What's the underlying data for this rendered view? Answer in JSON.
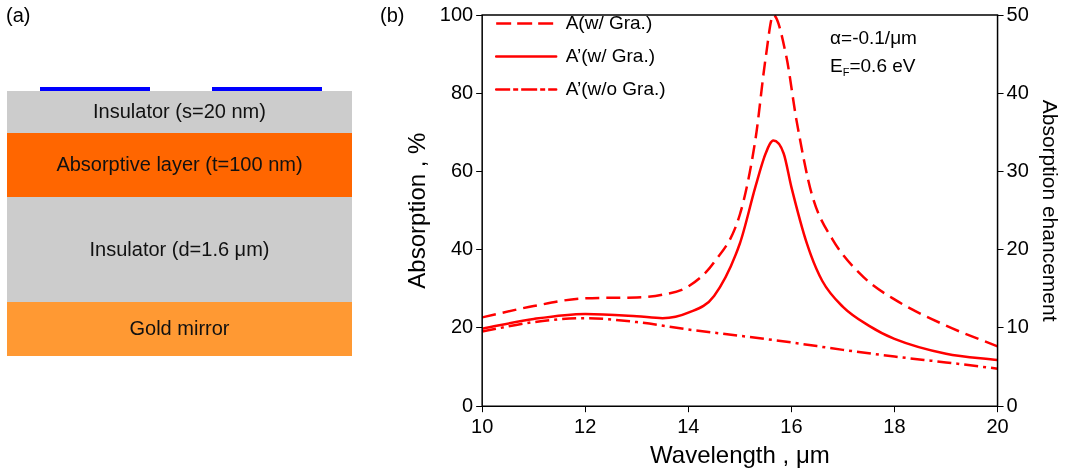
{
  "chart_data": [
    {
      "type": "other",
      "title": "(a)",
      "annotations": [
        "Insulator (s=20 nm)",
        "Absorptive layer (t=100 nm)",
        "Insulator (d=1.6 μm)",
        "Gold mirror"
      ]
    },
    {
      "type": "line",
      "title": "(b)",
      "xlabel": "Wavelength , μm",
      "ylabel": "Absorption , %",
      "y2label": "Absorption ehancement",
      "xlim": [
        10,
        20
      ],
      "xticks": [
        10,
        12,
        14,
        16,
        18,
        20
      ],
      "ylim": [
        0,
        100
      ],
      "yticks": [
        0,
        20,
        40,
        60,
        80,
        100
      ],
      "y2lim": [
        0,
        50
      ],
      "y2ticks": [
        0,
        10,
        20,
        30,
        40,
        50
      ],
      "grid": false,
      "legend": "top left",
      "marker": "none",
      "annotations": [
        "α=-0.1/μm",
        "E$_{F}$=0.6 eV"
      ],
      "series": [
        {
          "name": "A(w/ Gra.)",
          "color": "#ff0000",
          "line_style": "dashed",
          "x": [
            10,
            11,
            12,
            13,
            13.5,
            14,
            14.5,
            15,
            15.3,
            15.5,
            15.65,
            15.9,
            16.1,
            16.4,
            16.8,
            17.4,
            18,
            19,
            20
          ],
          "values": [
            22.7,
            25.6,
            27.6,
            27.8,
            28.5,
            30.6,
            36.8,
            49,
            68,
            89,
            100,
            89.5,
            73,
            54,
            42.6,
            33,
            27.3,
            20.6,
            15.3
          ]
        },
        {
          "name": "A’(w/ Gra.)",
          "color": "#ff0000",
          "line_style": "solid",
          "x": [
            10,
            11,
            12,
            13,
            13.5,
            14,
            14.5,
            15,
            15.3,
            15.5,
            15.65,
            15.85,
            16,
            16.3,
            16.6,
            17,
            17.5,
            18,
            19,
            20
          ],
          "values": [
            19.8,
            22.3,
            23.6,
            23,
            22.5,
            23.9,
            28.2,
            41.6,
            56,
            64.6,
            67.9,
            64.6,
            56,
            41.6,
            32,
            25.4,
            20.6,
            17.2,
            13.4,
            11.8
          ]
        },
        {
          "name": "A’(w/o Gra.)",
          "color": "#ff0000",
          "line_style": "dashdot",
          "x": [
            10,
            11,
            12,
            13,
            14,
            15,
            16,
            17,
            18,
            19,
            20
          ],
          "values": [
            19.1,
            21.5,
            22.5,
            21.5,
            19.6,
            18,
            16.3,
            14.4,
            12.7,
            11.2,
            9.6
          ]
        }
      ]
    }
  ]
}
